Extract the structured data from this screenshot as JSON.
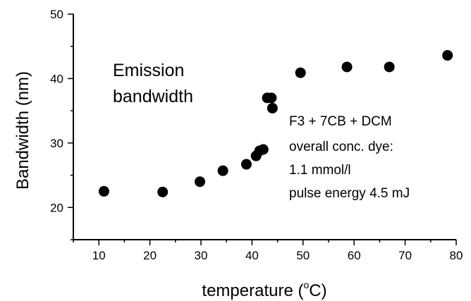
{
  "chart_data": {
    "type": "scatter",
    "xlabel": "temperature (°C)",
    "xlabel_parts": {
      "prefix": "temperature (",
      "degree": "o",
      "suffix": "C)"
    },
    "ylabel": "Bandwidth (nm)",
    "xlim": [
      5,
      80
    ],
    "ylim": [
      15,
      50
    ],
    "xticks": [
      10,
      20,
      30,
      40,
      50,
      60,
      70,
      80
    ],
    "yticks": [
      20,
      30,
      40,
      50
    ],
    "x_minor_step": 5,
    "y_minor_step": 5,
    "grid": false,
    "marker_color": "#000000",
    "points": [
      {
        "x": 11.0,
        "y": 22.5
      },
      {
        "x": 22.5,
        "y": 22.4
      },
      {
        "x": 29.8,
        "y": 24.0
      },
      {
        "x": 34.3,
        "y": 25.7
      },
      {
        "x": 38.9,
        "y": 26.7
      },
      {
        "x": 40.8,
        "y": 28.0
      },
      {
        "x": 41.5,
        "y": 28.8
      },
      {
        "x": 42.2,
        "y": 29.0
      },
      {
        "x": 43.0,
        "y": 37.0
      },
      {
        "x": 43.8,
        "y": 37.0
      },
      {
        "x": 44.0,
        "y": 35.4
      },
      {
        "x": 49.5,
        "y": 40.9
      },
      {
        "x": 58.6,
        "y": 41.8
      },
      {
        "x": 66.9,
        "y": 41.8
      },
      {
        "x": 78.3,
        "y": 43.6
      }
    ],
    "annotations": {
      "emission_label": [
        "Emission",
        "bandwidth"
      ],
      "conditions": [
        "F3 + 7CB + DCM",
        "overall conc. dye:",
        "1.1 mmol/l",
        "pulse energy 4.5 mJ"
      ]
    }
  }
}
